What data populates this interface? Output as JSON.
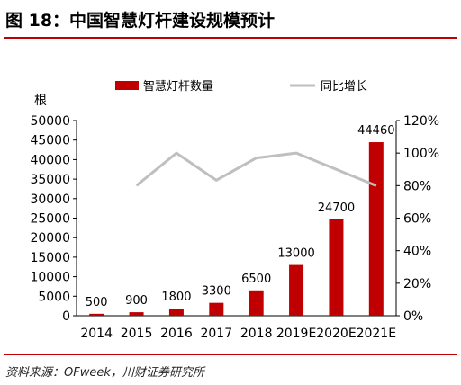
{
  "figure": {
    "title": "图 18：中国智慧灯杆建设规模预计",
    "source": "资料来源：OFweek，川财证券研究所"
  },
  "chart_data": {
    "type": "bar",
    "categories": [
      "2014",
      "2015",
      "2016",
      "2017",
      "2018",
      "2019E",
      "2020E",
      "2021E"
    ],
    "series": [
      {
        "name": "智慧灯杆数量",
        "kind": "bar",
        "axis": "left",
        "color": "#c00000",
        "values": [
          500,
          900,
          1800,
          3300,
          6500,
          13000,
          24700,
          44460
        ],
        "labels": [
          "500",
          "900",
          "1800",
          "3300",
          "6500",
          "13000",
          "24700",
          "44460"
        ]
      },
      {
        "name": "同比增长",
        "kind": "line",
        "axis": "right",
        "color": "#bfbfbf",
        "values": [
          null,
          0.8,
          1.0,
          0.833,
          0.97,
          1.0,
          0.9,
          0.8
        ]
      }
    ],
    "ylabel": "根",
    "ylim": [
      0,
      50000
    ],
    "yticks": [
      "0",
      "5000",
      "10000",
      "15000",
      "20000",
      "25000",
      "30000",
      "35000",
      "40000",
      "45000",
      "50000"
    ],
    "y2lim": [
      0,
      1.2
    ],
    "y2ticks": [
      "0%",
      "20%",
      "40%",
      "60%",
      "80%",
      "100%",
      "120%"
    ],
    "legend": "top-center",
    "grid": false
  }
}
